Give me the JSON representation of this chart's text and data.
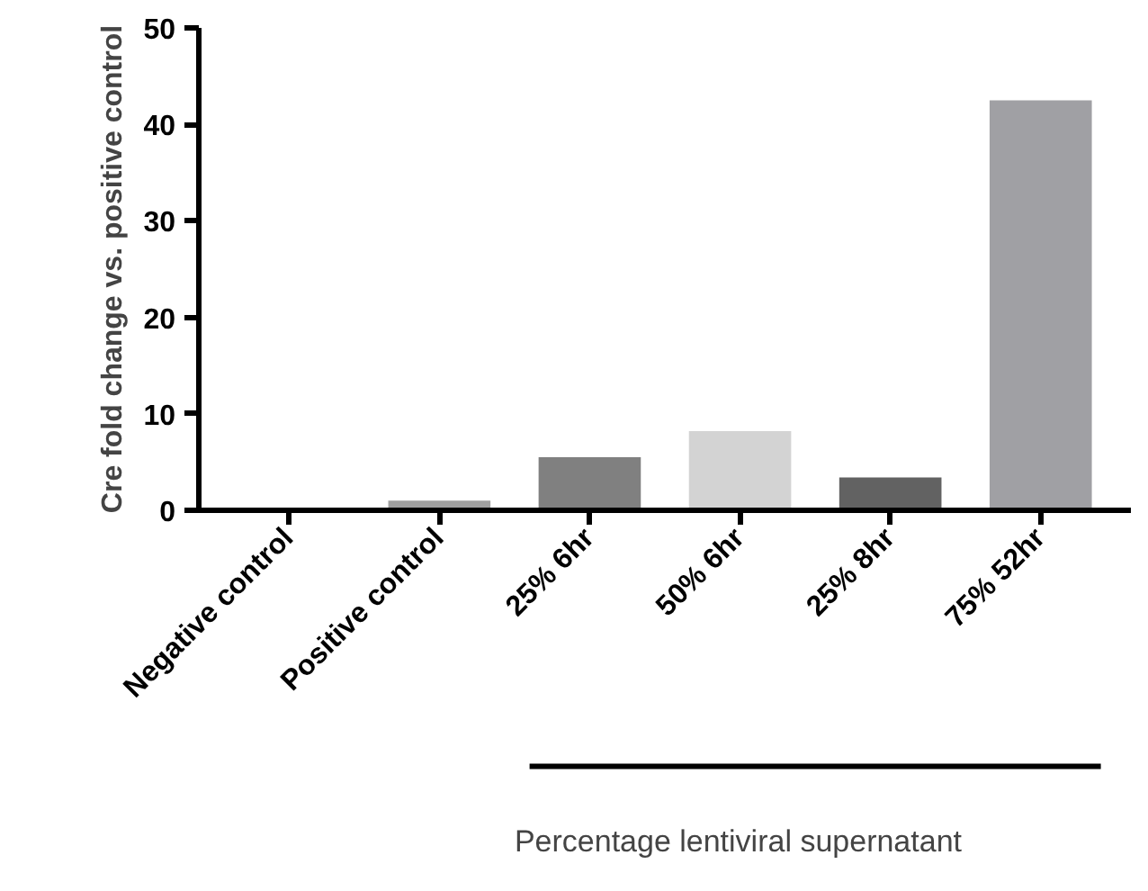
{
  "chart_data": {
    "type": "bar",
    "ylabel": "Cre fold change vs. positive control",
    "categories": [
      "Negative control",
      "Positive control",
      "25% 6hr",
      "50% 6hr",
      "25% 8hr",
      "75% 52hr"
    ],
    "values": [
      0,
      1.0,
      5.5,
      8.2,
      3.4,
      42.5
    ],
    "colors": [
      "#a0a0a0",
      "#a0a0a0",
      "#808080",
      "#d3d3d3",
      "#626262",
      "#a0a0a4"
    ],
    "ylim": [
      0,
      50
    ],
    "yticks": [
      0,
      10,
      20,
      30,
      40,
      50
    ],
    "grid": false,
    "annotations": [
      "Percentage lentiviral supernatant"
    ]
  }
}
